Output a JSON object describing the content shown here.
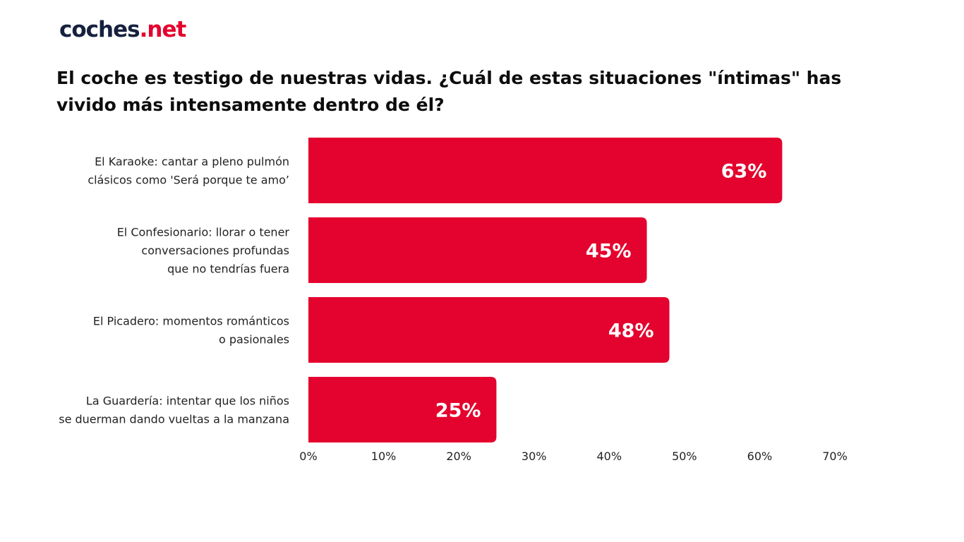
{
  "brand": {
    "part1": "coches",
    "part2": ".net"
  },
  "chart_data": {
    "type": "bar",
    "orientation": "horizontal",
    "title": "El coche es testigo de nuestras vidas. ¿Cuál de estas situaciones \"íntimas\" has vivido más intensamente dentro de él?",
    "categories": [
      [
        "El Karaoke: cantar a pleno pulmón",
        "clásicos como 'Será porque te amo’"
      ],
      [
        "El Confesionario: llorar o tener",
        "conversaciones profundas",
        "que no tendrías fuera"
      ],
      [
        "El Picadero: momentos románticos",
        "o pasionales"
      ],
      [
        "La Guardería: intentar que los niños",
        "se duerman dando vueltas a la manzana"
      ]
    ],
    "values": [
      63,
      45,
      48,
      25
    ],
    "value_labels": [
      "63%",
      "45%",
      "48%",
      "25%"
    ],
    "xlim": [
      0,
      70
    ],
    "xticks": [
      0,
      10,
      20,
      30,
      40,
      50,
      60,
      70
    ],
    "xtick_labels": [
      "0%",
      "10%",
      "20%",
      "30%",
      "40%",
      "50%",
      "60%",
      "70%"
    ],
    "grid": false,
    "legend": "none",
    "bar_color": "#e4032e"
  }
}
